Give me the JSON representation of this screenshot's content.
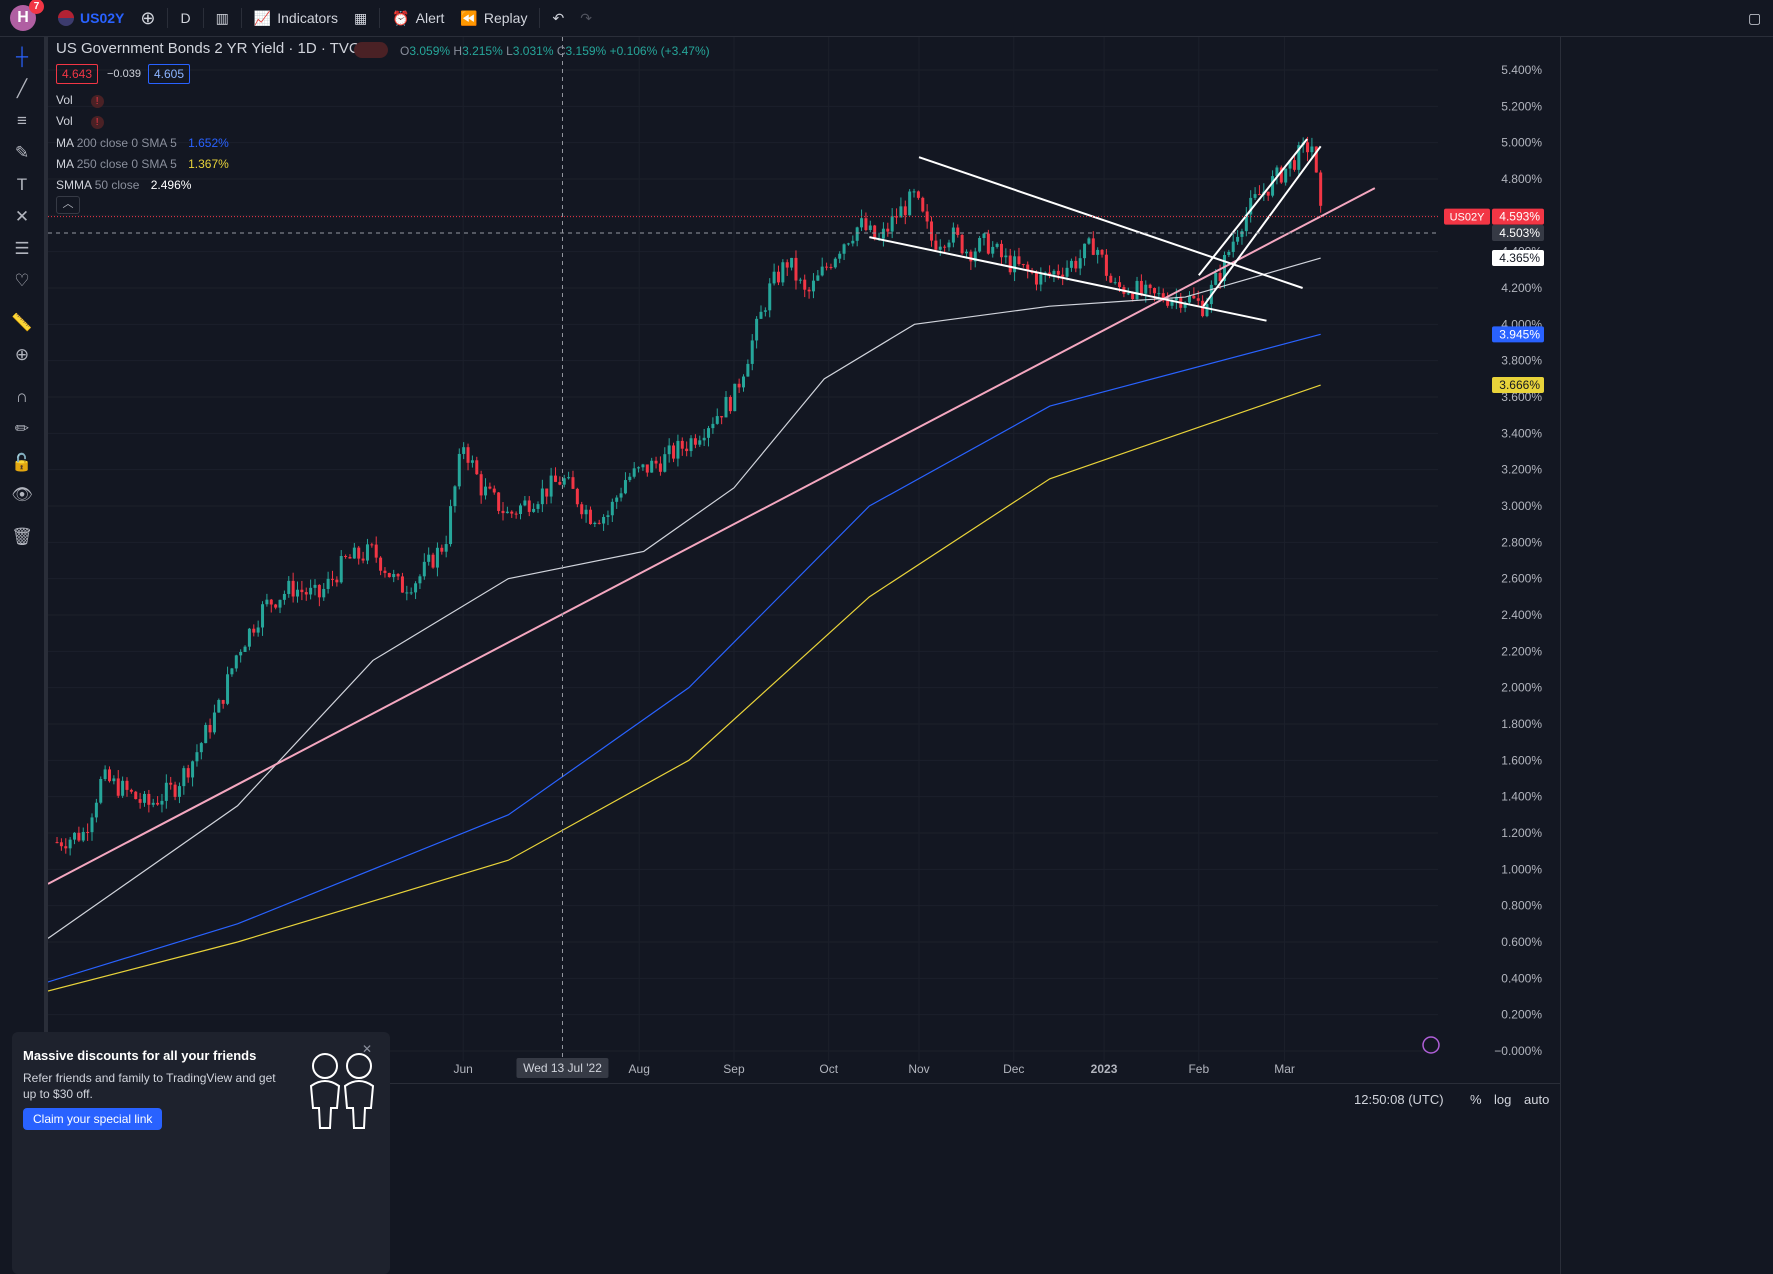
{
  "topbar": {
    "avatar_letter": "H",
    "notifications": "7",
    "symbol": "US02Y",
    "interval": "D",
    "indicators_label": "Indicators",
    "alert_label": "Alert",
    "replay_label": "Replay"
  },
  "legend": {
    "title": "US Government Bonds 2 YR Yield · 1D · TVC",
    "open_label": "O",
    "open": "3.059%",
    "high_label": "H",
    "high": "3.215%",
    "low_label": "L",
    "low": "3.031%",
    "close_label": "C",
    "close": "3.159%",
    "change": "+0.106% (+3.47%)",
    "sell_price": "4.643",
    "spread": "−0.039",
    "buy_price": "4.605",
    "vol1": "Vol",
    "vol2": "Vol",
    "ma200_name": "MA",
    "ma200_params": "200 close 0 SMA 5",
    "ma200_value": "1.652%",
    "ma250_name": "MA",
    "ma250_params": "250 close 0 SMA 5",
    "ma250_value": "1.367%",
    "smma_name": "SMMA",
    "smma_params": "50 close",
    "smma_value": "2.496%"
  },
  "crosshair_date": "Wed 13 Jul '22",
  "price_badges": {
    "symbol_tag": "US02Y",
    "last": "4.593%",
    "crosshair": "4.503%",
    "smma": "4.365%",
    "ma200": "3.945%",
    "ma250": "3.666%"
  },
  "promo": {
    "title": "Massive discounts for all your friends",
    "body": "Refer friends and family to TradingView and get up to $30 off.",
    "button": "Claim your special link"
  },
  "bottombar": {
    "time": "12:50:08 (UTC)",
    "percent": "%",
    "log": "log",
    "auto": "auto"
  },
  "colors": {
    "background": "#131722",
    "up": "#26a69a",
    "down": "#f23645",
    "ma200": "#2962ff",
    "ma250": "#e8d33a",
    "smma": "#d1d4dc",
    "trendline": "#f4a7c0",
    "drawn_lines": "#ffffff"
  },
  "chart_data": {
    "type": "candlestick",
    "title": "US Government Bonds 2 YR Yield · 1D · TVC",
    "y_axis_labels": [
      "5.400%",
      "5.200%",
      "5.000%",
      "4.800%",
      "4.600%",
      "4.400%",
      "4.200%",
      "4.000%",
      "3.800%",
      "3.600%",
      "3.400%",
      "3.200%",
      "3.000%",
      "2.800%",
      "2.600%",
      "2.400%",
      "2.200%",
      "2.000%",
      "1.800%",
      "1.600%",
      "1.400%",
      "1.200%",
      "1.000%",
      "0.800%",
      "0.600%",
      "0.400%",
      "0.200%",
      "−0.000%"
    ],
    "ylim": [
      0,
      5.4
    ],
    "x_axis_labels": [
      "Jun",
      "Aug",
      "Sep",
      "Oct",
      "Nov",
      "Dec",
      "2023",
      "Feb",
      "Mar"
    ],
    "x_label_positions": [
      6.5,
      8.45,
      9.5,
      10.55,
      11.55,
      12.6,
      13.6,
      14.65,
      15.6
    ],
    "xlim": [
      1.9,
      17.3
    ],
    "close_path": [
      [
        2.0,
        1.15
      ],
      [
        2.3,
        1.2
      ],
      [
        2.5,
        1.5
      ],
      [
        2.7,
        1.45
      ],
      [
        3.0,
        1.35
      ],
      [
        3.3,
        1.45
      ],
      [
        3.5,
        1.6
      ],
      [
        3.8,
        1.9
      ],
      [
        4.0,
        2.2
      ],
      [
        4.3,
        2.45
      ],
      [
        4.6,
        2.55
      ],
      [
        4.9,
        2.5
      ],
      [
        5.2,
        2.7
      ],
      [
        5.5,
        2.75
      ],
      [
        5.8,
        2.55
      ],
      [
        6.0,
        2.6
      ],
      [
        6.3,
        2.8
      ],
      [
        6.5,
        3.35
      ],
      [
        6.7,
        3.1
      ],
      [
        7.0,
        2.95
      ],
      [
        7.3,
        3.05
      ],
      [
        7.6,
        3.15
      ],
      [
        7.9,
        2.95
      ],
      [
        8.1,
        2.95
      ],
      [
        8.3,
        3.15
      ],
      [
        8.5,
        3.2
      ],
      [
        8.7,
        3.25
      ],
      [
        9.0,
        3.35
      ],
      [
        9.2,
        3.45
      ],
      [
        9.5,
        3.6
      ],
      [
        9.7,
        3.9
      ],
      [
        9.9,
        4.2
      ],
      [
        10.1,
        4.35
      ],
      [
        10.3,
        4.15
      ],
      [
        10.5,
        4.3
      ],
      [
        10.7,
        4.45
      ],
      [
        10.9,
        4.55
      ],
      [
        11.1,
        4.45
      ],
      [
        11.3,
        4.6
      ],
      [
        11.5,
        4.7
      ],
      [
        11.7,
        4.45
      ],
      [
        11.9,
        4.5
      ],
      [
        12.1,
        4.4
      ],
      [
        12.3,
        4.45
      ],
      [
        12.5,
        4.35
      ],
      [
        12.7,
        4.3
      ],
      [
        12.9,
        4.25
      ],
      [
        13.1,
        4.3
      ],
      [
        13.3,
        4.35
      ],
      [
        13.5,
        4.45
      ],
      [
        13.7,
        4.2
      ],
      [
        13.9,
        4.2
      ],
      [
        14.1,
        4.15
      ],
      [
        14.3,
        4.15
      ],
      [
        14.5,
        4.15
      ],
      [
        14.7,
        4.1
      ],
      [
        14.9,
        4.3
      ],
      [
        15.1,
        4.55
      ],
      [
        15.3,
        4.7
      ],
      [
        15.5,
        4.8
      ],
      [
        15.7,
        4.9
      ],
      [
        15.9,
        5.0
      ],
      [
        16.0,
        4.6
      ]
    ],
    "series": [
      {
        "name": "MA 200 close 0 SMA 5",
        "value": 3.945,
        "points": [
          [
            1.9,
            0.38
          ],
          [
            4.0,
            0.7
          ],
          [
            7.0,
            1.3
          ],
          [
            9.0,
            2.0
          ],
          [
            11.0,
            3.0
          ],
          [
            13.0,
            3.55
          ],
          [
            16.0,
            3.945
          ]
        ]
      },
      {
        "name": "MA 250 close 0 SMA 5",
        "value": 3.666,
        "points": [
          [
            1.9,
            0.33
          ],
          [
            4.0,
            0.6
          ],
          [
            7.0,
            1.05
          ],
          [
            9.0,
            1.6
          ],
          [
            11.0,
            2.5
          ],
          [
            13.0,
            3.15
          ],
          [
            16.0,
            3.666
          ]
        ]
      },
      {
        "name": "SMMA 50 close",
        "value": 4.365,
        "points": [
          [
            1.9,
            0.62
          ],
          [
            4.0,
            1.35
          ],
          [
            5.5,
            2.15
          ],
          [
            7.0,
            2.6
          ],
          [
            8.5,
            2.75
          ],
          [
            9.5,
            3.1
          ],
          [
            10.5,
            3.7
          ],
          [
            11.5,
            4.0
          ],
          [
            13.0,
            4.1
          ],
          [
            14.5,
            4.15
          ],
          [
            16.0,
            4.365
          ]
        ]
      }
    ],
    "drawn_lines": [
      {
        "color": "pink",
        "from": [
          1.9,
          0.92
        ],
        "to": [
          16.6,
          4.75
        ]
      },
      {
        "color": "white",
        "from": [
          11.55,
          4.92
        ],
        "to": [
          15.8,
          4.2
        ]
      },
      {
        "color": "white",
        "from": [
          11.0,
          4.48
        ],
        "to": [
          15.4,
          4.02
        ]
      },
      {
        "color": "white",
        "from": [
          14.65,
          4.27
        ],
        "to": [
          15.85,
          5.02
        ]
      },
      {
        "color": "white",
        "from": [
          14.7,
          4.1
        ],
        "to": [
          16.0,
          4.98
        ]
      }
    ],
    "crosshair_price": 4.503,
    "last_price": 4.593,
    "grid": true
  }
}
